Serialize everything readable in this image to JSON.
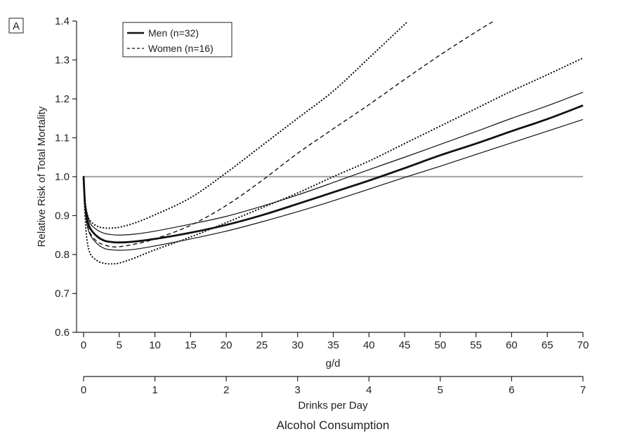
{
  "panel_label": "A",
  "chart_data": {
    "type": "line",
    "ylabel": "Relative Risk of Total Mortality",
    "xlabel": "g/d",
    "x2label": "Drinks per Day",
    "bottom_title": "Alcohol Consumption",
    "xlim": [
      0,
      70
    ],
    "ylim": [
      0.6,
      1.4
    ],
    "xticks": [
      0,
      5,
      10,
      15,
      20,
      25,
      30,
      35,
      40,
      45,
      50,
      55,
      60,
      65,
      70
    ],
    "xtick_labels": [
      "0",
      "5",
      "10",
      "15",
      "20",
      "25",
      "30",
      "35",
      "40",
      "45",
      "50",
      "55",
      "60",
      "65",
      "70"
    ],
    "yticks": [
      0.6,
      0.7,
      0.8,
      0.9,
      1.0,
      1.1,
      1.2,
      1.3,
      1.4
    ],
    "ytick_labels": [
      "0.6",
      "0.7",
      "0.8",
      "0.9",
      "1.0",
      "1.1",
      "1.2",
      "1.3",
      "1.4"
    ],
    "x2lim": [
      0,
      7
    ],
    "x2ticks": [
      0,
      1,
      2,
      3,
      4,
      5,
      6,
      7
    ],
    "x2tick_labels": [
      "0",
      "1",
      "2",
      "3",
      "4",
      "5",
      "6",
      "7"
    ],
    "reference_line": {
      "y": 1.0,
      "color": "#aaaaaa"
    },
    "legend": {
      "placement": "top-left",
      "entries": [
        {
          "label": "Men (n=32)",
          "style": "solid-bold"
        },
        {
          "label": "Women (n=16)",
          "style": "dashed"
        }
      ]
    },
    "series": [
      {
        "name": "Men (n=32)",
        "role": "estimate",
        "style": "solid-bold",
        "color": "#111111",
        "x": [
          0,
          0.2,
          0.5,
          1,
          2,
          3,
          4,
          5,
          7,
          10,
          15,
          20,
          25,
          30,
          35,
          40,
          45,
          50,
          55,
          60,
          65,
          70
        ],
        "y": [
          1.0,
          0.93,
          0.89,
          0.865,
          0.845,
          0.835,
          0.832,
          0.831,
          0.833,
          0.84,
          0.856,
          0.876,
          0.901,
          0.93,
          0.96,
          0.99,
          1.022,
          1.055,
          1.085,
          1.117,
          1.148,
          1.183
        ]
      },
      {
        "role": "men-upper-ci",
        "style": "solid-thin",
        "color": "#111111",
        "x": [
          0,
          0.2,
          0.5,
          1,
          2,
          3,
          4,
          5,
          7,
          10,
          15,
          20,
          25,
          30,
          35,
          40,
          45,
          50,
          55,
          60,
          65,
          70
        ],
        "y": [
          1.0,
          0.94,
          0.905,
          0.878,
          0.862,
          0.854,
          0.851,
          0.85,
          0.852,
          0.86,
          0.878,
          0.898,
          0.924,
          0.953,
          0.985,
          1.018,
          1.05,
          1.083,
          1.116,
          1.15,
          1.182,
          1.217
        ]
      },
      {
        "role": "men-lower-ci",
        "style": "solid-thin",
        "color": "#111111",
        "x": [
          0,
          0.2,
          0.5,
          1,
          2,
          3,
          4,
          5,
          7,
          10,
          15,
          20,
          25,
          30,
          35,
          40,
          45,
          50,
          55,
          60,
          65,
          70
        ],
        "y": [
          1.0,
          0.92,
          0.875,
          0.848,
          0.826,
          0.815,
          0.812,
          0.811,
          0.813,
          0.822,
          0.84,
          0.86,
          0.884,
          0.91,
          0.938,
          0.968,
          0.998,
          1.027,
          1.057,
          1.087,
          1.117,
          1.147
        ]
      },
      {
        "name": "Women (n=16)",
        "role": "estimate",
        "style": "dashed",
        "color": "#111111",
        "x": [
          0,
          0.2,
          0.5,
          1,
          2,
          3,
          4,
          5,
          7,
          10,
          15,
          20,
          25,
          30,
          35,
          40,
          45,
          50,
          55,
          57.5
        ],
        "y": [
          1.0,
          0.93,
          0.88,
          0.852,
          0.832,
          0.824,
          0.82,
          0.82,
          0.826,
          0.84,
          0.875,
          0.926,
          0.99,
          1.06,
          1.123,
          1.185,
          1.25,
          1.313,
          1.372,
          1.4
        ]
      },
      {
        "role": "women-upper-ci",
        "style": "dotted",
        "color": "#111111",
        "x": [
          0,
          0.2,
          0.5,
          1,
          2,
          3,
          4,
          5,
          7,
          10,
          15,
          20,
          25,
          30,
          35,
          40,
          45.5
        ],
        "y": [
          1.0,
          0.94,
          0.905,
          0.885,
          0.872,
          0.868,
          0.868,
          0.87,
          0.88,
          0.902,
          0.946,
          1.01,
          1.08,
          1.15,
          1.22,
          1.305,
          1.4
        ]
      },
      {
        "role": "women-lower-ci",
        "style": "dotted",
        "color": "#111111",
        "x": [
          0,
          0.2,
          0.5,
          1,
          2,
          3,
          4,
          5,
          7,
          10,
          15,
          20,
          25,
          30,
          35,
          40,
          45,
          50,
          55,
          60,
          65,
          70
        ],
        "y": [
          1.0,
          0.9,
          0.835,
          0.8,
          0.783,
          0.777,
          0.776,
          0.778,
          0.79,
          0.812,
          0.845,
          0.882,
          0.92,
          0.958,
          1.0,
          1.04,
          1.085,
          1.13,
          1.175,
          1.22,
          1.262,
          1.305
        ]
      }
    ]
  }
}
